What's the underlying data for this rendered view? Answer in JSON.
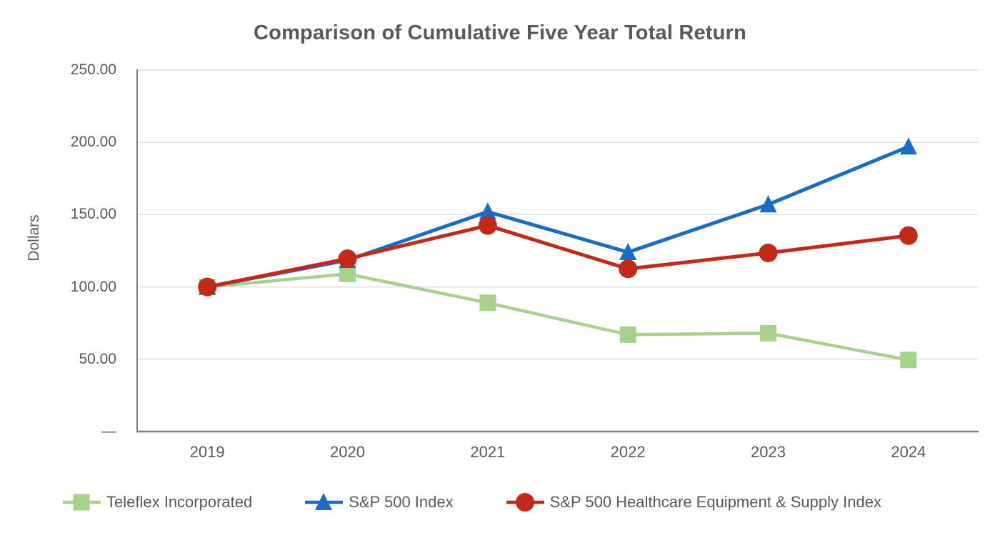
{
  "chart_data": {
    "type": "line",
    "title": "Comparison of Cumulative Five Year Total Return",
    "ylabel": "Dollars",
    "xlabel": "",
    "ylim": [
      0,
      250
    ],
    "grid": true,
    "legend_position": "bottom",
    "categories": [
      "2019",
      "2020",
      "2021",
      "2022",
      "2023",
      "2024"
    ],
    "y_ticks": [
      {
        "value": 250,
        "label": "250.00"
      },
      {
        "value": 200,
        "label": "200.00"
      },
      {
        "value": 150,
        "label": "150.00"
      },
      {
        "value": 100,
        "label": "100.00"
      },
      {
        "value": 50,
        "label": "50.00"
      },
      {
        "value": 0,
        "label": "—"
      }
    ],
    "series": [
      {
        "name": "Teleflex Incorporated",
        "marker": "square",
        "color": "#A9D18E",
        "line_width": 4.5,
        "values": [
          100.0,
          109.0,
          89.0,
          67.0,
          68.0,
          49.5
        ]
      },
      {
        "name": "S&P 500 Index",
        "marker": "triangle",
        "color": "#1A6BC4",
        "line_width": 5,
        "values": [
          100.0,
          118.5,
          152.0,
          124.0,
          157.0,
          197.0
        ]
      },
      {
        "name": "S&P 500 Healthcare Equipment & Supply Index",
        "marker": "circle",
        "color": "#C12A1A",
        "line_width": 5,
        "values": [
          100.0,
          119.5,
          142.5,
          112.5,
          123.5,
          135.5
        ]
      }
    ],
    "axis_color": "#7F7F7F",
    "gridline_color": "#E0E0E0",
    "text_color": "#595959"
  }
}
